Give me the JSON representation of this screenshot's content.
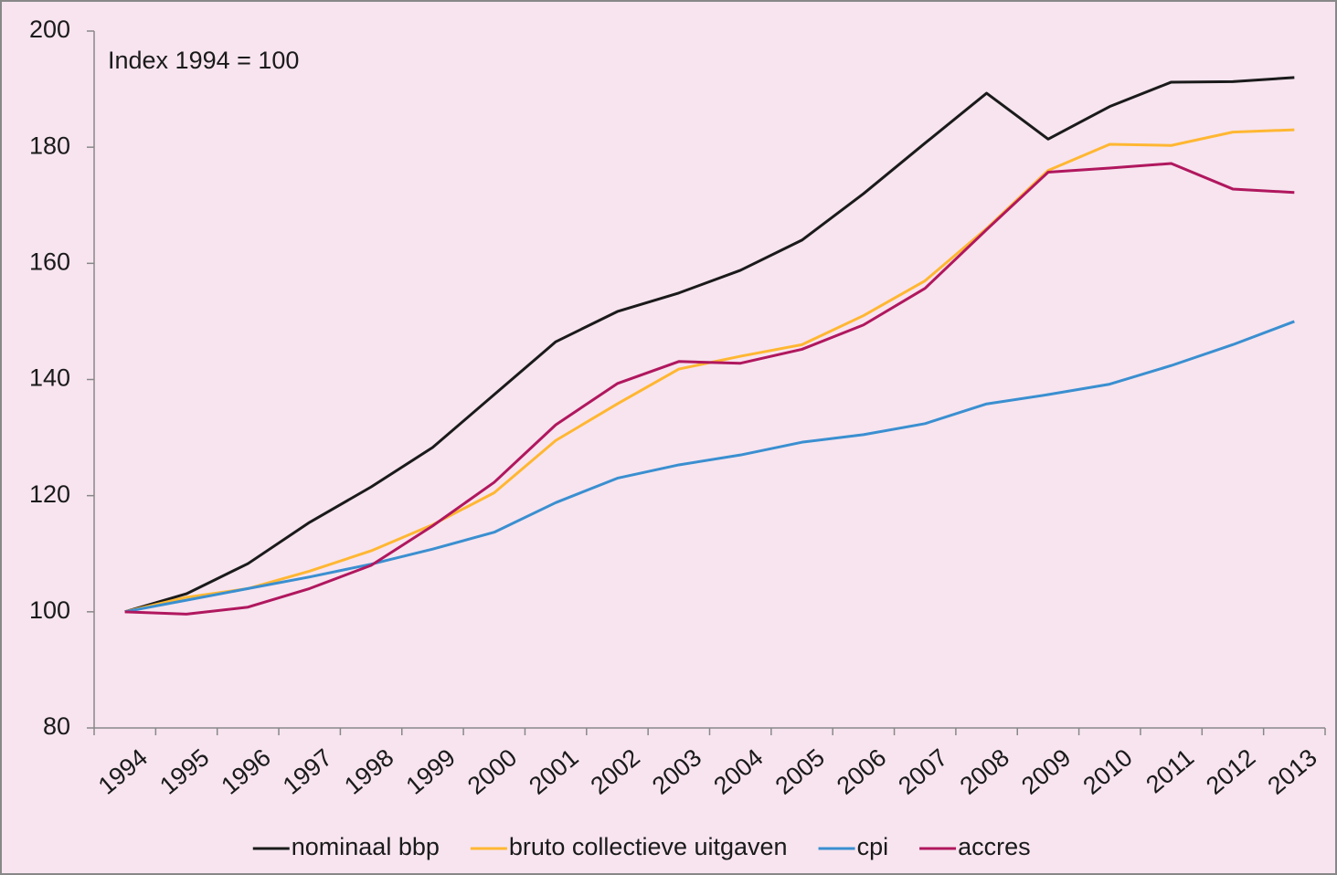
{
  "chart_data": {
    "type": "line",
    "annotation": "Index 1994 = 100",
    "categories": [
      "1994",
      "1995",
      "1996",
      "1997",
      "1998",
      "1999",
      "2000",
      "2001",
      "2002",
      "2003",
      "2004",
      "2005",
      "2006",
      "2007",
      "2008",
      "2009",
      "2010",
      "2011",
      "2012",
      "2013"
    ],
    "series": [
      {
        "name": "nominaal bbp",
        "color": "#1a1a1a",
        "values": [
          100,
          103.1,
          108.3,
          115.4,
          121.5,
          128.3,
          137.4,
          146.5,
          151.7,
          154.9,
          158.8,
          164,
          172,
          180.7,
          189.3,
          181.4,
          187,
          191.2,
          191.3,
          192
        ]
      },
      {
        "name": "bruto collectieve uitgaven",
        "color": "#ffb732",
        "values": [
          100,
          102.5,
          104,
          107,
          110.5,
          115,
          120.5,
          129.5,
          135.8,
          141.8,
          144,
          146,
          151,
          157,
          166,
          176,
          180.5,
          180.3,
          182.6,
          183
        ]
      },
      {
        "name": "cpi",
        "color": "#3a8fd0",
        "values": [
          100,
          102,
          104,
          106,
          108.2,
          110.8,
          113.7,
          118.8,
          123,
          125.3,
          127,
          129.2,
          130.5,
          132.4,
          135.8,
          137.4,
          139.2,
          142.4,
          146,
          150
        ]
      },
      {
        "name": "accres",
        "color": "#b0175e",
        "values": [
          100,
          99.6,
          100.8,
          104,
          108,
          114.8,
          122.3,
          132.2,
          139.3,
          143.1,
          142.8,
          145.2,
          149.4,
          155.7,
          165.8,
          175.7,
          176.4,
          177.2,
          172.8,
          172.2
        ]
      }
    ],
    "ylim": [
      80,
      200
    ],
    "yticks": [
      80,
      100,
      120,
      140,
      160,
      180,
      200
    ]
  }
}
